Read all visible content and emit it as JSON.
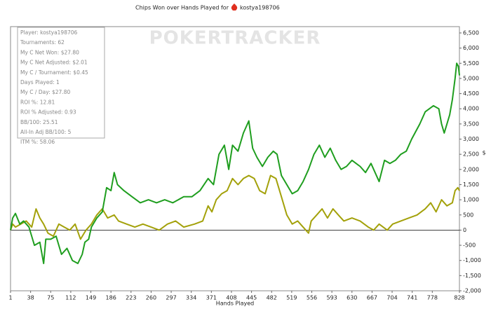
{
  "chart_data": {
    "type": "line",
    "title": "Chips Won over Hands Played for",
    "player": "kostya198706",
    "watermark": "POKERTRACKER",
    "xlabel": "Hands Played",
    "ylabel": "$",
    "stats": [
      "Player: kostya198706",
      "Tournaments: 62",
      "My C Net Won: $27.80",
      "My C Net Adjusted: $2.01",
      "My C / Tournament: $0.45",
      "Days Played: 1",
      "My C / Day: $27.80",
      "ROI %: 12.81",
      "ROI % Adjusted: 0.93",
      "BB/100: 25.51",
      "All-In Adj BB/100: 5",
      "ITM %: 58.06"
    ],
    "xlim": [
      1,
      828
    ],
    "xticks": [
      1,
      38,
      75,
      112,
      149,
      186,
      223,
      260,
      297,
      334,
      371,
      408,
      445,
      482,
      519,
      556,
      593,
      630,
      667,
      704,
      741,
      778,
      828
    ],
    "ylim": [
      -2000,
      6500
    ],
    "yticks": [
      {
        "value": -2000,
        "label": "-2,000"
      },
      {
        "value": -1500,
        "label": "-1,500"
      },
      {
        "value": -1000,
        "label": "-1,000"
      },
      -500,
      0,
      500,
      {
        "value": 1000,
        "label": "1,000"
      },
      {
        "value": 1500,
        "label": "1,500"
      },
      {
        "value": 2000,
        "label": "2,000"
      },
      {
        "value": 2500,
        "label": "2,500"
      },
      {
        "value": 3000,
        "label": "3,000"
      },
      {
        "value": 3500,
        "label": "3,500"
      },
      {
        "value": 4000,
        "label": "4,000"
      },
      {
        "value": 4500,
        "label": "4,500"
      },
      {
        "value": 5000,
        "label": "5,000"
      },
      {
        "value": 5500,
        "label": "5,500"
      },
      {
        "value": 6000,
        "label": "6,000"
      },
      {
        "value": 6500,
        "label": "6,500"
      }
    ],
    "series": [
      {
        "color": "#1f9e1f",
        "x": [
          1,
          5,
          10,
          18,
          25,
          35,
          45,
          55,
          62,
          66,
          75,
          85,
          95,
          105,
          115,
          125,
          133,
          138,
          145,
          150,
          160,
          170,
          178,
          186,
          192,
          198,
          210,
          225,
          240,
          255,
          270,
          285,
          300,
          320,
          335,
          350,
          365,
          375,
          385,
          395,
          403,
          410,
          420,
          430,
          440,
          447,
          455,
          465,
          475,
          485,
          492,
          500,
          510,
          520,
          530,
          540,
          550,
          560,
          570,
          580,
          590,
          600,
          610,
          620,
          630,
          645,
          655,
          665,
          680,
          690,
          700,
          710,
          720,
          730,
          740,
          755,
          765,
          780,
          790,
          795,
          800,
          810,
          815,
          820,
          823,
          826,
          828
        ],
        "values": [
          0,
          400,
          550,
          200,
          300,
          100,
          -500,
          -400,
          -1100,
          -300,
          -300,
          -200,
          -800,
          -600,
          -1000,
          -1100,
          -800,
          -400,
          -300,
          100,
          400,
          600,
          1400,
          1300,
          1900,
          1500,
          1300,
          1100,
          900,
          1000,
          900,
          1000,
          900,
          1100,
          1100,
          1300,
          1700,
          1500,
          2500,
          2800,
          2000,
          2800,
          2600,
          3200,
          3600,
          2700,
          2400,
          2100,
          2400,
          2600,
          2500,
          1800,
          1500,
          1200,
          1300,
          1600,
          2000,
          2500,
          2800,
          2400,
          2700,
          2300,
          2000,
          2100,
          2300,
          2100,
          1900,
          2200,
          1600,
          2300,
          2200,
          2300,
          2500,
          2600,
          3000,
          3500,
          3900,
          4100,
          4000,
          3500,
          3200,
          3800,
          4300,
          5000,
          5500,
          5400,
          5100
        ]
      },
      {
        "color": "#a3a10a",
        "x": [
          1,
          5,
          10,
          20,
          30,
          40,
          48,
          55,
          62,
          70,
          80,
          90,
          100,
          110,
          120,
          130,
          140,
          150,
          160,
          170,
          180,
          192,
          200,
          215,
          230,
          245,
          260,
          275,
          290,
          305,
          320,
          340,
          355,
          365,
          372,
          380,
          390,
          400,
          410,
          420,
          430,
          440,
          450,
          460,
          470,
          480,
          490,
          500,
          510,
          520,
          530,
          540,
          550,
          555,
          565,
          575,
          585,
          595,
          605,
          615,
          630,
          645,
          660,
          670,
          680,
          695,
          705,
          720,
          735,
          750,
          765,
          775,
          785,
          795,
          805,
          815,
          820,
          825,
          828
        ],
        "values": [
          0,
          200,
          100,
          200,
          300,
          100,
          700,
          400,
          200,
          -100,
          -200,
          200,
          100,
          0,
          200,
          -300,
          0,
          200,
          500,
          700,
          400,
          500,
          300,
          200,
          100,
          200,
          100,
          0,
          200,
          300,
          100,
          200,
          300,
          800,
          600,
          1000,
          1200,
          1300,
          1700,
          1500,
          1700,
          1800,
          1700,
          1300,
          1200,
          1800,
          1700,
          1100,
          500,
          200,
          300,
          100,
          -100,
          300,
          500,
          700,
          400,
          700,
          500,
          300,
          400,
          300,
          100,
          0,
          200,
          0,
          200,
          300,
          400,
          500,
          700,
          900,
          600,
          1000,
          800,
          900,
          1300,
          1400,
          1300
        ]
      }
    ]
  }
}
